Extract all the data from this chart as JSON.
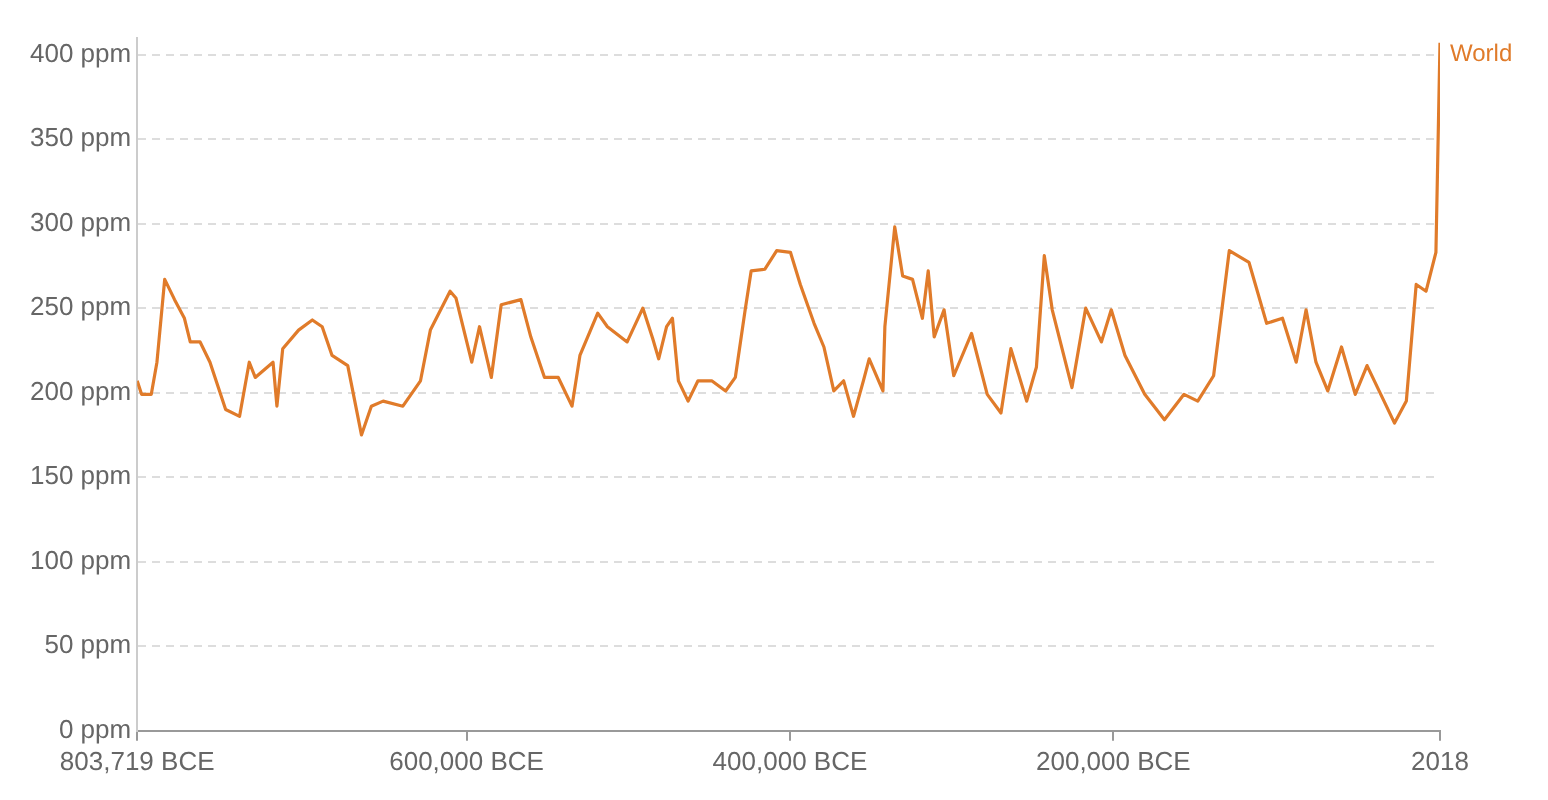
{
  "chart_data": {
    "type": "line",
    "xlim": [
      -803719,
      2018
    ],
    "ylim": [
      0,
      410
    ],
    "xticks": [
      {
        "value": -803719,
        "label": "803,719 BCE"
      },
      {
        "value": -600000,
        "label": "600,000 BCE"
      },
      {
        "value": -400000,
        "label": "400,000 BCE"
      },
      {
        "value": -200000,
        "label": "200,000 BCE"
      },
      2018
    ],
    "yticks": [
      {
        "value": 0,
        "label": "0 ppm"
      },
      {
        "value": 50,
        "label": "50 ppm"
      },
      {
        "value": 100,
        "label": "100 ppm"
      },
      {
        "value": 150,
        "label": "150 ppm"
      },
      {
        "value": 200,
        "label": "200 ppm"
      },
      {
        "value": 250,
        "label": "250 ppm"
      },
      {
        "value": 300,
        "label": "300 ppm"
      },
      {
        "value": 350,
        "label": "350 ppm"
      },
      {
        "value": 400,
        "label": "400 ppm"
      }
    ],
    "grid": "y",
    "legend": false,
    "marker": "none",
    "line_style": "solid",
    "series": [
      {
        "name": "World",
        "color": "#e07b2a",
        "x": [
          -803719,
          -801000,
          -795000,
          -791500,
          -786700,
          -780600,
          -774500,
          -770900,
          -764800,
          -758700,
          -749000,
          -740400,
          -734400,
          -730700,
          -719700,
          -717300,
          -713700,
          -703900,
          -695400,
          -689300,
          -683200,
          -673500,
          -665000,
          -658900,
          -651600,
          -639400,
          -628500,
          -622400,
          -610200,
          -606600,
          -596800,
          -592000,
          -584700,
          -578600,
          -566400,
          -560300,
          -551800,
          -543300,
          -534800,
          -529900,
          -518900,
          -512900,
          -500700,
          -491000,
          -484900,
          -481200,
          -476300,
          -472700,
          -469000,
          -463000,
          -456900,
          -448400,
          -439800,
          -433800,
          -427700,
          -424000,
          -415500,
          -408200,
          -399700,
          -393600,
          -385100,
          -379000,
          -372900,
          -366800,
          -360700,
          -354600,
          -351000,
          -342500,
          -341300,
          -335200,
          -330300,
          -324200,
          -318100,
          -314500,
          -310800,
          -304700,
          -298700,
          -287700,
          -278000,
          -269500,
          -263400,
          -253600,
          -247600,
          -242700,
          -237800,
          -225600,
          -217100,
          -207400,
          -201300,
          -192800,
          -180600,
          -168400,
          -156300,
          -147800,
          -138000,
          -128300,
          -116100,
          -105200,
          -95400,
          -86900,
          -80800,
          -74700,
          -67400,
          -58900,
          -50400,
          -43100,
          -34600,
          -26100,
          -18800,
          -12700,
          -6600,
          -500,
          2018
        ],
        "values": [
          207,
          199,
          199,
          218,
          267,
          255,
          244,
          230,
          230,
          218,
          190,
          186,
          218,
          209,
          218,
          192,
          226,
          237,
          243,
          239,
          222,
          216,
          175,
          192,
          195,
          192,
          207,
          237,
          260,
          256,
          218,
          239,
          209,
          252,
          255,
          233,
          209,
          209,
          192,
          222,
          247,
          239,
          230,
          250,
          232,
          220,
          239,
          244,
          207,
          195,
          207,
          207,
          201,
          209,
          249,
          272,
          273,
          284,
          283,
          264,
          241,
          227,
          201,
          207,
          186,
          207,
          220,
          201,
          239,
          298,
          269,
          267,
          244,
          272,
          233,
          249,
          210,
          235,
          199,
          188,
          226,
          195,
          215,
          281,
          249,
          203,
          250,
          230,
          249,
          222,
          199,
          184,
          199,
          195,
          210,
          284,
          277,
          241,
          244,
          218,
          249,
          218,
          201,
          227,
          199,
          216,
          199,
          182,
          195,
          264,
          260,
          283,
          407
        ]
      }
    ]
  }
}
